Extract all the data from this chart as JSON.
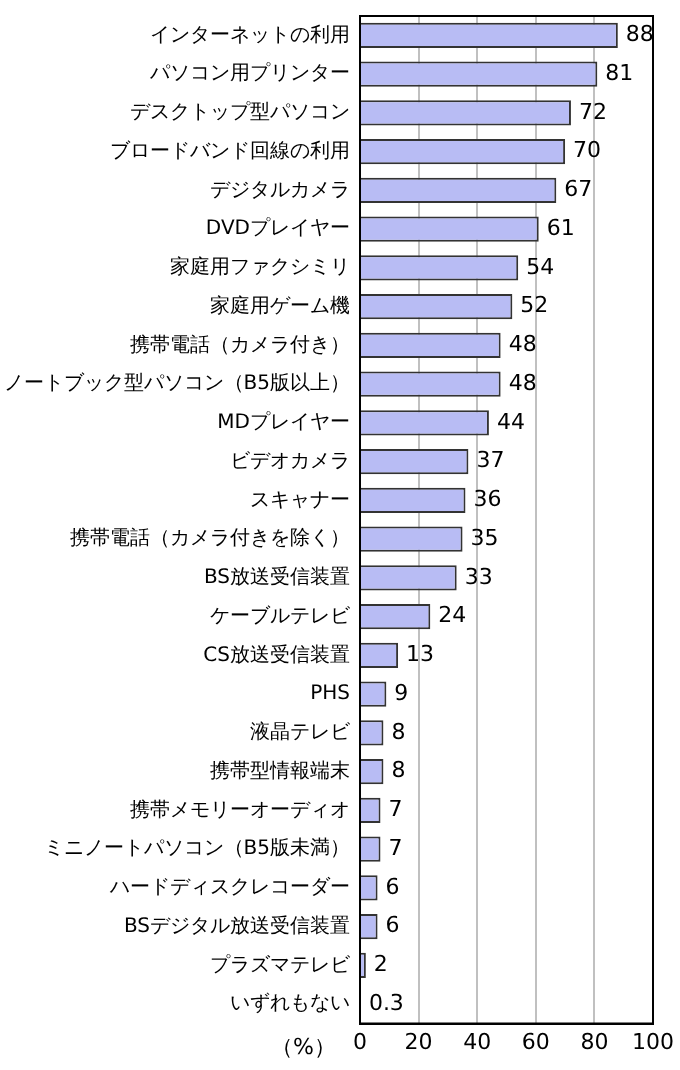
{
  "chart_data": {
    "type": "bar",
    "orientation": "horizontal",
    "xlabel": "（%）",
    "categories": [
      "インターネットの利用",
      "パソコン用プリンター",
      "デスクトップ型パソコン",
      "ブロードバンド回線の利用",
      "デジタルカメラ",
      "DVDプレイヤー",
      "家庭用ファクシミリ",
      "家庭用ゲーム機",
      "携帯電話（カメラ付き）",
      "ノートブック型パソコン（B5版以上）",
      "MDプレイヤー",
      "ビデオカメラ",
      "スキャナー",
      "携帯電話（カメラ付きを除く）",
      "BS放送受信装置",
      "ケーブルテレビ",
      "CS放送受信装置",
      "PHS",
      "液晶テレビ",
      "携帯型情報端末",
      "携帯メモリーオーディオ",
      "ミニノートパソコン（B5版未満）",
      "ハードディスクレコーダー",
      "BSデジタル放送受信装置",
      "プラズマテレビ",
      "いずれもない"
    ],
    "values": [
      88,
      81,
      72,
      70,
      67,
      61,
      54,
      52,
      48,
      48,
      44,
      37,
      36,
      35,
      33,
      24,
      13,
      9,
      8,
      8,
      7,
      7,
      6,
      6,
      2,
      0.3
    ],
    "color": "#b8bcf4",
    "data_labels": true,
    "grid": "x",
    "xlim": [
      0,
      100
    ],
    "xticks": [
      0,
      20,
      40,
      60,
      80,
      100
    ]
  }
}
